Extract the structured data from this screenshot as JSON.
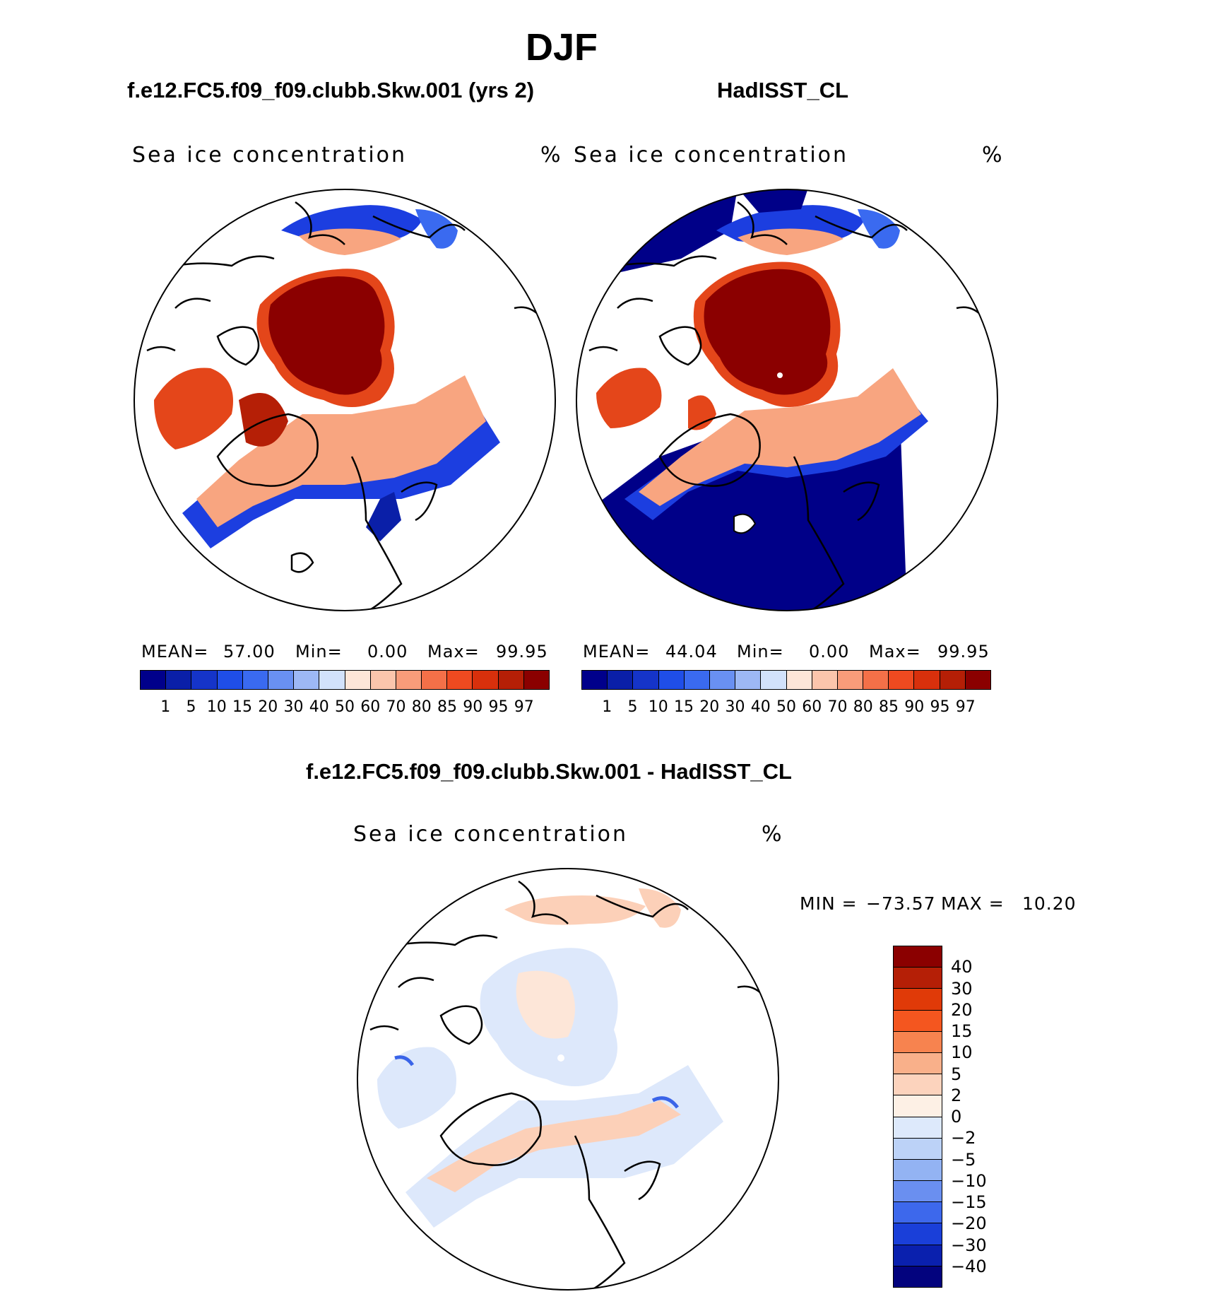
{
  "figure": {
    "title": "DJF",
    "panel_left": {
      "subtitle": "f.e12.FC5.f09_f09.clubb.Skw.001 (yrs 2)",
      "variable": "Sea ice concentration",
      "units": "%",
      "mean_label": "MEAN=",
      "mean": "57.00",
      "min_label": "Min=",
      "min": "0.00",
      "max_label": "Max=",
      "max": "99.95"
    },
    "panel_right": {
      "subtitle": "HadISST_CL",
      "variable": "Sea ice concentration",
      "units": "%",
      "mean_label": "MEAN=",
      "mean": "44.04",
      "min_label": "Min=",
      "min": "0.00",
      "max_label": "Max=",
      "max": "99.95"
    },
    "panel_diff": {
      "subtitle": "f.e12.FC5.f09_f09.clubb.Skw.001 - HadISST_CL",
      "variable": "Sea ice concentration",
      "units": "%",
      "min_label": "MIN =",
      "min": "−73.57",
      "max_label": "MAX =",
      "max": "10.20"
    }
  },
  "colorbar_abs": {
    "levels": [
      "1",
      "5",
      "10",
      "15",
      "20",
      "30",
      "40",
      "50",
      "60",
      "70",
      "80",
      "85",
      "90",
      "95",
      "97"
    ],
    "colors": [
      "#00008b",
      "#0a1fa8",
      "#1534c9",
      "#1f4ee8",
      "#3a6af0",
      "#6990f2",
      "#9db8f5",
      "#d2e2fb",
      "#fde6d8",
      "#fbc5ac",
      "#f89c7a",
      "#f47048",
      "#ef4a20",
      "#d8300c",
      "#b51f06",
      "#8b0000"
    ]
  },
  "colorbar_diff": {
    "levels": [
      "40",
      "30",
      "20",
      "15",
      "10",
      "5",
      "2",
      "0",
      "−2",
      "−5",
      "−10",
      "−15",
      "−20",
      "−30",
      "−40"
    ],
    "colors": [
      "#8b0000",
      "#b51f06",
      "#e03a08",
      "#f4561f",
      "#f7834f",
      "#f9b08a",
      "#fcd3bd",
      "#fdf0e5",
      "#dde9fb",
      "#bcd2f7",
      "#93b3f3",
      "#6a8ff0",
      "#3d68ec",
      "#1a3fd9",
      "#0a20ae",
      "#03037e"
    ]
  },
  "map_colors": {
    "land_outline": "#000000",
    "ice_core": "#8b0000",
    "ice_high": "#e4461a",
    "ice_mid": "#f8a580",
    "ice_edge": "#1c3ee0",
    "open_ocean_obs": "#000088",
    "diff_neutral": "#dde8fb",
    "diff_pos": "#fcd0b8",
    "diff_neg": "#3a64e8"
  }
}
